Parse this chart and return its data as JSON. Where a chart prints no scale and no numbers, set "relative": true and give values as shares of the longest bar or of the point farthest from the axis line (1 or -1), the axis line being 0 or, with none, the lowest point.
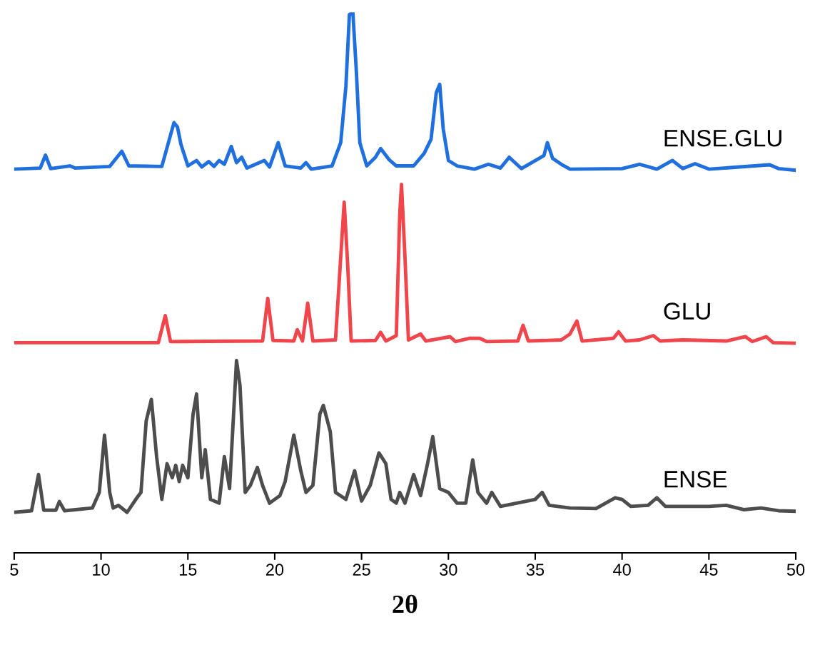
{
  "chart_data": {
    "type": "line",
    "relative": true,
    "xlabel": "2θ",
    "xlim": [
      5,
      50
    ],
    "xticks": [
      5,
      10,
      15,
      20,
      25,
      30,
      35,
      40,
      45,
      50
    ],
    "tick_labels": "x",
    "marker": "none",
    "line_style": "solid",
    "series": [
      {
        "name": "ENSE.GLU",
        "color": "#1f6fde",
        "x": [
          5,
          6.5,
          6.8,
          7.1,
          8.2,
          8.5,
          10.5,
          11.2,
          11.6,
          13.5,
          14.2,
          14.4,
          14.6,
          15.0,
          15.5,
          15.8,
          16.2,
          16.5,
          16.8,
          17.1,
          17.5,
          17.8,
          18.1,
          18.4,
          19.4,
          19.7,
          20.2,
          20.6,
          21.5,
          21.8,
          22.1,
          23.3,
          23.8,
          24.1,
          24.3,
          24.5,
          24.7,
          24.9,
          25.3,
          25.8,
          26.1,
          26.6,
          27.0,
          28.0,
          28.6,
          29.0,
          29.3,
          29.5,
          29.7,
          30.0,
          30.5,
          31.5,
          32.3,
          33.0,
          33.5,
          34.2,
          35.5,
          35.7,
          36.0,
          36.5,
          37.0,
          40.0,
          41.0,
          42.0,
          42.9,
          43.5,
          44.2,
          45.0,
          48.5,
          49.0,
          50.0
        ],
        "values": [
          0.71,
          0.712,
          0.736,
          0.711,
          0.716,
          0.712,
          0.715,
          0.743,
          0.716,
          0.715,
          0.796,
          0.788,
          0.756,
          0.716,
          0.726,
          0.714,
          0.724,
          0.715,
          0.726,
          0.719,
          0.752,
          0.722,
          0.732,
          0.712,
          0.726,
          0.714,
          0.759,
          0.716,
          0.712,
          0.722,
          0.71,
          0.716,
          0.759,
          0.864,
          0.996,
          1.0,
          0.891,
          0.759,
          0.716,
          0.732,
          0.748,
          0.727,
          0.716,
          0.716,
          0.739,
          0.765,
          0.851,
          0.867,
          0.785,
          0.726,
          0.716,
          0.71,
          0.719,
          0.712,
          0.732,
          0.711,
          0.735,
          0.759,
          0.73,
          0.719,
          0.71,
          0.711,
          0.719,
          0.71,
          0.726,
          0.711,
          0.72,
          0.71,
          0.718,
          0.711,
          0.708
        ]
      },
      {
        "name": "GLU",
        "color": "#f0464b",
        "x": [
          5,
          13.3,
          13.7,
          14.0,
          19.3,
          19.6,
          19.9,
          21.1,
          21.3,
          21.6,
          21.9,
          22.2,
          23.5,
          23.8,
          24.0,
          24.2,
          24.4,
          25.8,
          26.1,
          26.4,
          27.0,
          27.2,
          27.3,
          27.5,
          27.7,
          28.4,
          28.7,
          30.1,
          30.4,
          31.2,
          31.8,
          32.2,
          34.0,
          34.3,
          34.6,
          36.5,
          37.0,
          37.4,
          37.7,
          39.5,
          39.8,
          40.2,
          41.0,
          41.8,
          42.2,
          43.5,
          46,
          47.1,
          47.5,
          48.3,
          48.7,
          50
        ],
        "values": [
          0.389,
          0.389,
          0.439,
          0.391,
          0.392,
          0.471,
          0.393,
          0.392,
          0.413,
          0.392,
          0.462,
          0.392,
          0.394,
          0.547,
          0.649,
          0.534,
          0.392,
          0.393,
          0.408,
          0.392,
          0.402,
          0.627,
          0.682,
          0.547,
          0.394,
          0.405,
          0.392,
          0.4,
          0.391,
          0.397,
          0.397,
          0.391,
          0.392,
          0.421,
          0.392,
          0.394,
          0.405,
          0.429,
          0.392,
          0.397,
          0.409,
          0.392,
          0.394,
          0.402,
          0.392,
          0.394,
          0.392,
          0.4,
          0.391,
          0.4,
          0.389,
          0.388
        ]
      },
      {
        "name": "ENSE",
        "color": "#4d4d4d",
        "x": [
          5,
          6.0,
          6.4,
          6.7,
          7.4,
          7.6,
          7.9,
          9.5,
          9.9,
          10.2,
          10.5,
          10.7,
          11.0,
          11.5,
          12.0,
          12.3,
          12.6,
          12.9,
          13.2,
          13.5,
          13.8,
          14.1,
          14.3,
          14.5,
          14.7,
          15.0,
          15.3,
          15.5,
          15.8,
          16.0,
          16.3,
          16.8,
          17.1,
          17.4,
          17.8,
          18.0,
          18.3,
          18.6,
          19.0,
          19.3,
          19.7,
          20.3,
          20.6,
          21.1,
          21.5,
          21.8,
          22.2,
          22.6,
          22.8,
          23.2,
          23.5,
          24.1,
          24.6,
          25.0,
          25.5,
          26.0,
          26.4,
          26.7,
          27.0,
          27.2,
          27.5,
          28.0,
          28.4,
          28.8,
          29.1,
          29.5,
          30.0,
          30.5,
          31.0,
          31.4,
          31.7,
          32.2,
          32.5,
          33.0,
          35.0,
          35.4,
          35.8,
          37.0,
          38.5,
          39.6,
          40.0,
          40.5,
          41.5,
          42.0,
          42.5,
          45,
          46,
          47,
          48,
          49,
          50
        ],
        "values": [
          0.075,
          0.078,
          0.145,
          0.079,
          0.079,
          0.095,
          0.078,
          0.083,
          0.112,
          0.218,
          0.112,
          0.083,
          0.088,
          0.075,
          0.099,
          0.112,
          0.244,
          0.284,
          0.178,
          0.099,
          0.165,
          0.139,
          0.162,
          0.132,
          0.162,
          0.139,
          0.257,
          0.294,
          0.139,
          0.191,
          0.099,
          0.092,
          0.178,
          0.119,
          0.356,
          0.31,
          0.112,
          0.125,
          0.158,
          0.125,
          0.092,
          0.106,
          0.132,
          0.218,
          0.152,
          0.112,
          0.125,
          0.257,
          0.273,
          0.224,
          0.112,
          0.099,
          0.152,
          0.096,
          0.125,
          0.185,
          0.165,
          0.099,
          0.092,
          0.112,
          0.092,
          0.145,
          0.106,
          0.165,
          0.215,
          0.119,
          0.112,
          0.092,
          0.092,
          0.172,
          0.112,
          0.092,
          0.112,
          0.086,
          0.099,
          0.112,
          0.088,
          0.083,
          0.082,
          0.102,
          0.099,
          0.086,
          0.088,
          0.102,
          0.086,
          0.086,
          0.088,
          0.08,
          0.083,
          0.078,
          0.077
        ]
      }
    ]
  }
}
